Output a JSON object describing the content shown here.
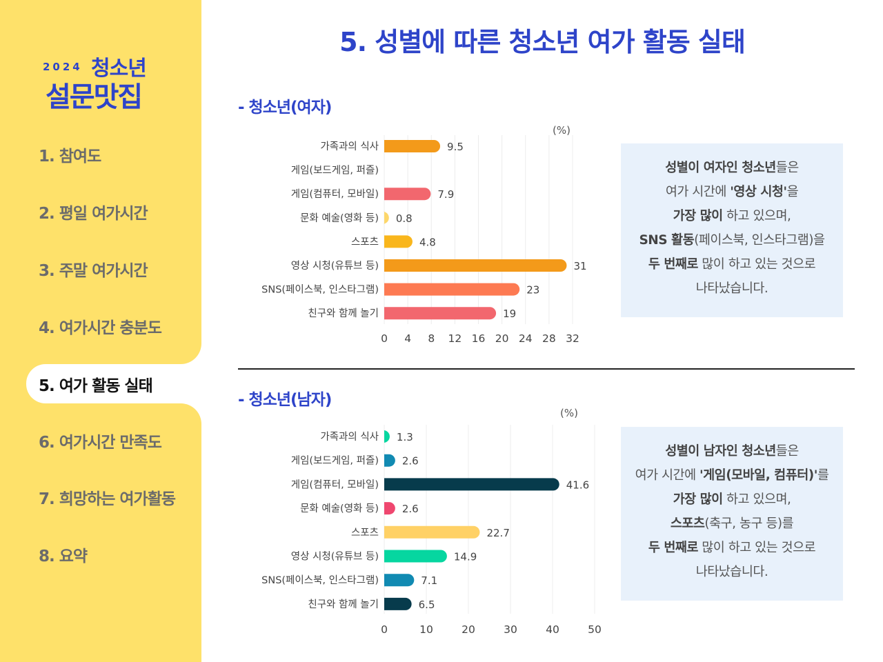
{
  "logo": {
    "year": "2024",
    "line1": "청소년",
    "line2": "설문맛집"
  },
  "nav": {
    "items": [
      {
        "label": "1. 참여도"
      },
      {
        "label": "2. 평일 여가시간"
      },
      {
        "label": "3. 주말 여가시간"
      },
      {
        "label": "4. 여가시간 충분도"
      },
      {
        "label": "5. 여가 활동 실태"
      },
      {
        "label": "6. 여가시간 만족도"
      },
      {
        "label": "7. 희망하는 여가활동"
      },
      {
        "label": "8. 요약"
      }
    ],
    "active_index": 4
  },
  "page_title": "5. 성별에 따른 청소년 여가 활동 실태",
  "sections": {
    "female_title": "- 청소년(여자)",
    "male_title": "- 청소년(남자)"
  },
  "chart_data": [
    {
      "type": "bar",
      "orientation": "horizontal",
      "unit": "(%)",
      "categories": [
        "가족과의 식사",
        "게임(보드게임, 퍼즐)",
        "게임(컴퓨터, 모바일)",
        "문화 예술(영화 등)",
        "스포츠",
        "영상 시청(유튜브 등)",
        "SNS(페이스북, 인스타그램)",
        "친구와 함께 놀기"
      ],
      "values": [
        9.5,
        null,
        7.9,
        0.8,
        4.8,
        31,
        23,
        19
      ],
      "value_labels": [
        "9.5",
        "",
        "7.9",
        "0.8",
        "4.8",
        "31",
        "23",
        "19"
      ],
      "colors": [
        "#f39a1a",
        "#f39a1a",
        "#f2676e",
        "#fdd76b",
        "#f9b61c",
        "#f39a1a",
        "#fd7a52",
        "#f2676e"
      ],
      "xlim": [
        0,
        32
      ],
      "ticks": [
        "0",
        "4",
        "8",
        "12",
        "16",
        "20",
        "24",
        "28",
        "32"
      ],
      "grid": true
    },
    {
      "type": "bar",
      "orientation": "horizontal",
      "unit": "(%)",
      "categories": [
        "가족과의 식사",
        "게임(보드게임, 퍼즐)",
        "게임(컴퓨터, 모바일)",
        "문화 예술(영화 등)",
        "스포츠",
        "영상 시청(유튜브 등)",
        "SNS(페이스북, 인스타그램)",
        "친구와 함께 놀기"
      ],
      "values": [
        1.3,
        2.6,
        41.6,
        2.6,
        22.7,
        14.9,
        7.1,
        6.5
      ],
      "value_labels": [
        "1.3",
        "2.6",
        "41.6",
        "2.6",
        "22.7",
        "14.9",
        "7.1",
        "6.5"
      ],
      "colors": [
        "#06d6a0",
        "#118ab2",
        "#073b4c",
        "#ef476f",
        "#ffd166",
        "#06d6a0",
        "#118ab2",
        "#073b4c"
      ],
      "xlim": [
        0,
        50
      ],
      "ticks": [
        "0",
        "10",
        "20",
        "30",
        "40",
        "50"
      ],
      "grid": true
    }
  ],
  "callouts": {
    "female": {
      "l1_b": "성별이 여자인 청소년",
      "l1": "들은",
      "l2": "여가 시간에 ",
      "l2_b": "'영상 시청'",
      "l2_end": "을",
      "l3_b": "가장 많이",
      "l3": " 하고 있으며,",
      "l4_b": "SNS 활동",
      "l4": "(페이스북, 인스타그램)을",
      "l5_b": "두 번째로",
      "l5": " 많이 하고 있는 것으로",
      "l6": "나타났습니다."
    },
    "male": {
      "l1_b": "성별이 남자인 청소년",
      "l1": "들은",
      "l2": "여가 시간에 ",
      "l2_b": "'게임(모바일, 컴퓨터)'",
      "l2_end": "를",
      "l3_b": "가장 많이",
      "l3": " 하고 있으며,",
      "l4_b": "스포츠",
      "l4": "(축구, 농구 등)를",
      "l5_b": "두 번째로",
      "l5": " 많이 하고 있는 것으로",
      "l6": "나타났습니다."
    }
  }
}
